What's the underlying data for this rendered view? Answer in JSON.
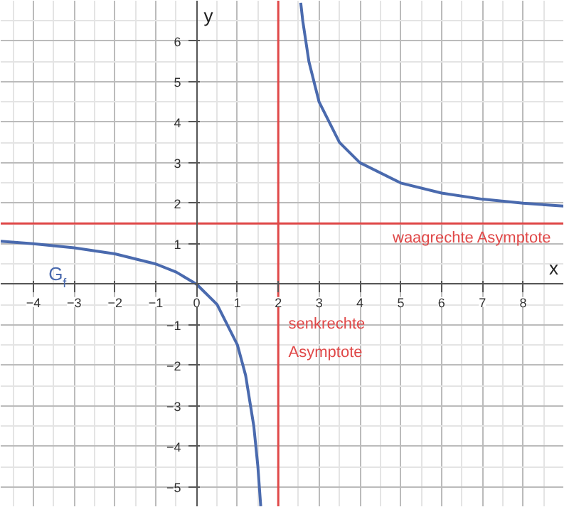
{
  "chart_data": {
    "type": "line",
    "xlabel": "x",
    "ylabel": "y",
    "series": [
      {
        "color": "#4a6aae",
        "x": [
          -4.8,
          -4,
          -3,
          -2,
          -1,
          -0.5,
          0,
          0.5,
          1,
          1.2,
          1.4,
          1.5,
          1.57
        ],
        "values": [
          1.06,
          1,
          0.9,
          0.75,
          0.5,
          0.3,
          0,
          -0.5,
          -1.5,
          -2.25,
          -3.5,
          -4.5,
          -5.48
        ]
      },
      {
        "color": "#4a6aae",
        "x": [
          2.55,
          2.6,
          2.75,
          3,
          3.5,
          4,
          5,
          6,
          7,
          8,
          9
        ],
        "values": [
          6.95,
          6.5,
          5.5,
          4.5,
          3.5,
          3,
          2.5,
          2.25,
          2.1,
          2,
          1.93
        ]
      }
    ],
    "ref_lines": [
      {
        "axis": "x",
        "value": 2,
        "label": "senkrechte Asymptote",
        "color": "#e04848"
      },
      {
        "axis": "y",
        "value": 1.5,
        "label": "waagrechte Asymptote",
        "color": "#e04848"
      }
    ],
    "annotations": [
      "G$_{f}$"
    ],
    "xlim": [
      -4.8,
      9
    ],
    "ylim": [
      -5.5,
      7
    ],
    "xticks": [
      -4,
      -3,
      -2,
      -1,
      0,
      1,
      2,
      3,
      4,
      5,
      6,
      7,
      8
    ],
    "yticks": [
      -5,
      -4,
      -3,
      -2,
      -1,
      1,
      2,
      3,
      4,
      5,
      6
    ],
    "grid": true,
    "marker": "none",
    "line_style": "solid"
  }
}
